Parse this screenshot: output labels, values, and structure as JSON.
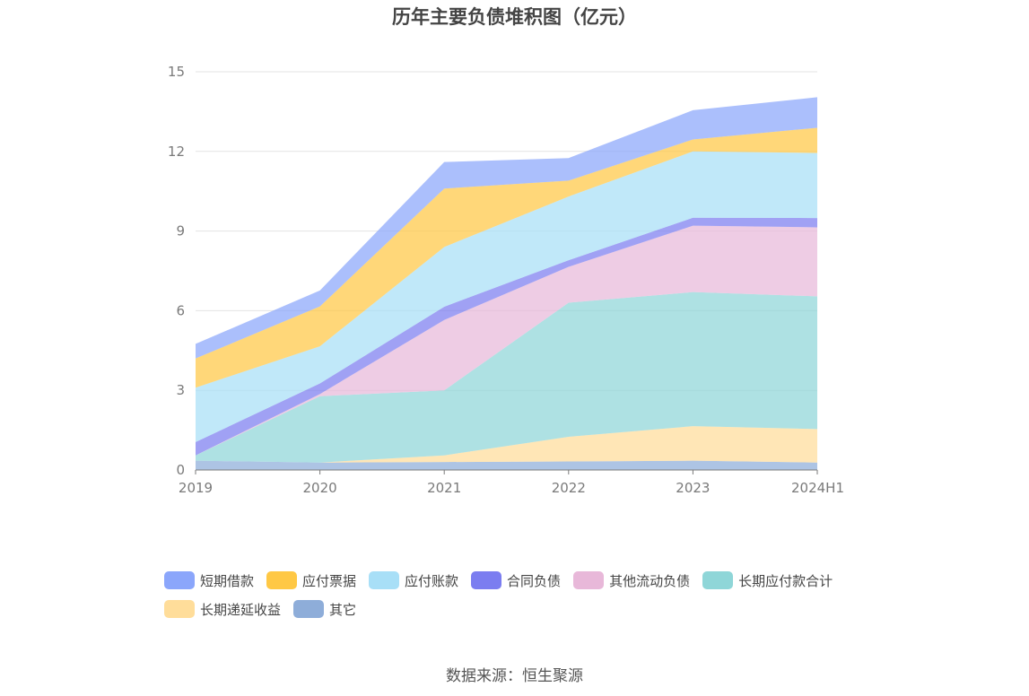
{
  "title": "历年主要负债堆积图（亿元）",
  "source_note": "数据来源：恒生聚源",
  "chart_data": {
    "type": "area",
    "stacked": true,
    "title": "历年主要负债堆积图（亿元）",
    "xlabel": "",
    "ylabel": "",
    "ylim": [
      0,
      15
    ],
    "y_ticks": [
      "0",
      "3",
      "6",
      "9",
      "12",
      "15"
    ],
    "grid": true,
    "legend_position": "bottom",
    "categories": [
      "2019",
      "2020",
      "2021",
      "2022",
      "2023",
      "2024H1"
    ],
    "series": [
      {
        "name": "其它",
        "color": "#8eadd9",
        "values": [
          0.35,
          0.28,
          0.3,
          0.32,
          0.35,
          0.28
        ]
      },
      {
        "name": "长期递延收益",
        "color": "#ffdd9a",
        "values": [
          0,
          0,
          0.25,
          0.93,
          1.3,
          1.26
        ]
      },
      {
        "name": "长期应付款合计",
        "color": "#8fd6d8",
        "values": [
          0.2,
          2.5,
          2.45,
          5.05,
          5.05,
          5.0
        ]
      },
      {
        "name": "其他流动负债",
        "color": "#e8b8d9",
        "values": [
          0,
          0.08,
          2.65,
          1.35,
          2.5,
          2.6
        ]
      },
      {
        "name": "合同负债",
        "color": "#7b7df0",
        "values": [
          0.5,
          0.4,
          0.5,
          0.25,
          0.3,
          0.35
        ]
      },
      {
        "name": "应付账款",
        "color": "#a8dff7",
        "values": [
          2.05,
          1.4,
          2.25,
          2.4,
          2.5,
          2.45
        ]
      },
      {
        "name": "应付票据",
        "color": "#ffc845",
        "values": [
          1.1,
          1.5,
          2.2,
          0.6,
          0.45,
          0.95
        ]
      },
      {
        "name": "短期借款",
        "color": "#8ba6fb",
        "values": [
          0.55,
          0.6,
          1.0,
          0.85,
          1.1,
          1.15
        ]
      }
    ],
    "legend_order": [
      "短期借款",
      "应付票据",
      "应付账款",
      "合同负债",
      "其他流动负债",
      "长期应付款合计",
      "长期递延收益",
      "其它"
    ]
  }
}
